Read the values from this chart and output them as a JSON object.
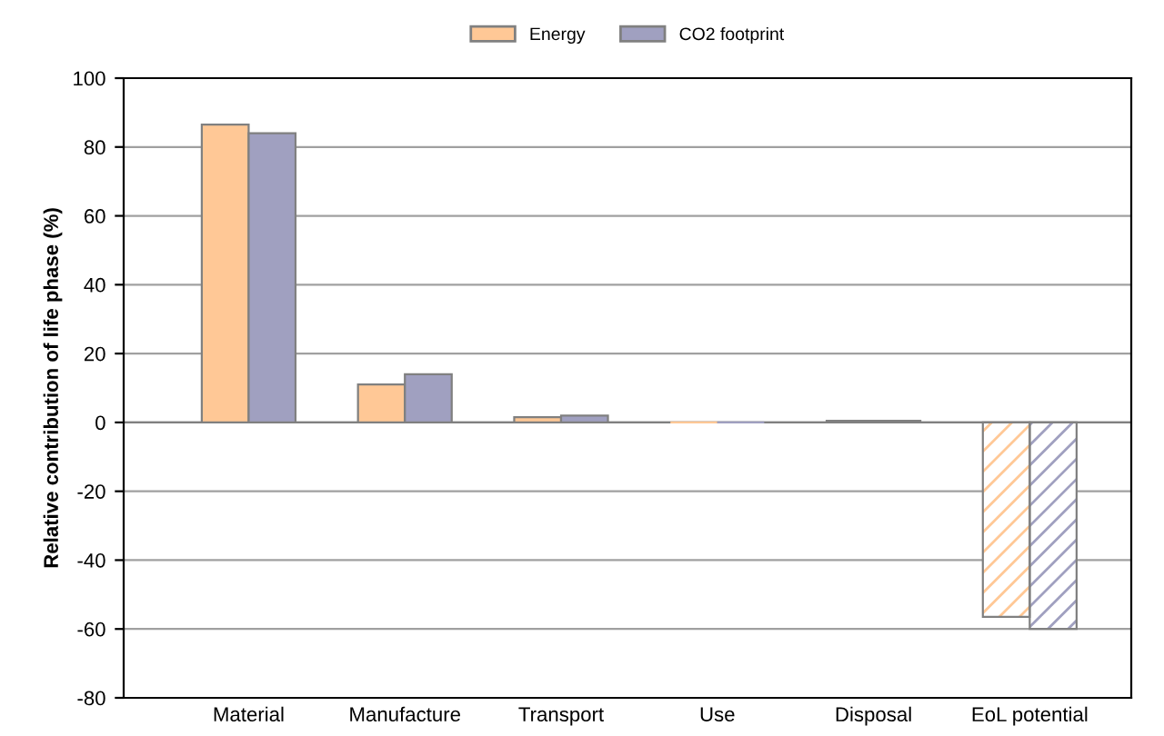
{
  "chart_data": {
    "type": "bar",
    "ylabel": "Relative contribution of life phase (%)",
    "categories": [
      "Material",
      "Manufacture",
      "Transport",
      "Use",
      "Disposal",
      "EoL potential"
    ],
    "series": [
      {
        "name": "Energy",
        "color": "#ffc896",
        "values": [
          86.5,
          11,
          1.5,
          0,
          0.5,
          -56.5
        ]
      },
      {
        "name": "CO2 footprint",
        "color": "#a0a0c0",
        "values": [
          84,
          14,
          2,
          0,
          0.5,
          -60
        ]
      }
    ],
    "ylim": [
      -80,
      100
    ],
    "yticks": [
      -80,
      -60,
      -40,
      -20,
      0,
      20,
      40,
      60,
      80,
      100
    ],
    "grid": "y",
    "legend": "top"
  }
}
